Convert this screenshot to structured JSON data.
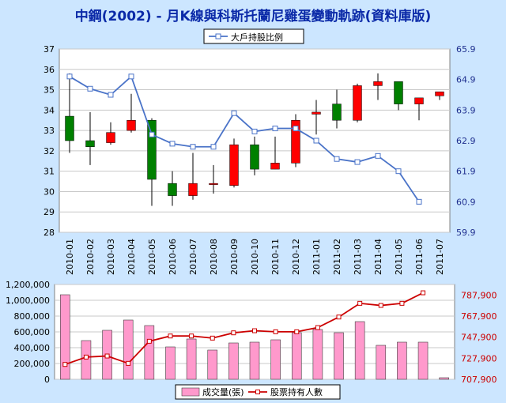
{
  "title": "中鋼(2002) - 月K線與科斯托蘭尼雞蛋變動軌跡(資料庫版)",
  "colors": {
    "background": "#cce6ff",
    "title": "#0b2aa8",
    "up_candle": "#ff0000",
    "down_candle": "#008000",
    "holder_ratio_line": "#4a73c8",
    "right_axis_top": "#1f2f8f",
    "volume_bar": "#ff99cc",
    "shareholder_line": "#cc0000",
    "right_axis_bottom": "#cc0000"
  },
  "chart_data": [
    {
      "type": "candlestick",
      "legend": [
        "大戶持股比例"
      ],
      "legend_position": "top",
      "categories": [
        "2010-01",
        "2010-02",
        "2010-03",
        "2010-04",
        "2010-05",
        "2010-06",
        "2010-07",
        "2010-08",
        "2010-09",
        "2010-10",
        "2010-11",
        "2010-12",
        "2011-01",
        "2011-02",
        "2011-03",
        "2011-04",
        "2011-05",
        "2011-06",
        "2011-07"
      ],
      "ohlc": [
        {
          "open": 33.7,
          "high": 35.8,
          "low": 31.9,
          "close": 32.5
        },
        {
          "open": 32.5,
          "high": 33.9,
          "low": 31.3,
          "close": 32.2
        },
        {
          "open": 32.4,
          "high": 33.4,
          "low": 32.3,
          "close": 32.9
        },
        {
          "open": 33.0,
          "high": 34.8,
          "low": 32.9,
          "close": 33.5
        },
        {
          "open": 33.5,
          "high": 33.6,
          "low": 29.3,
          "close": 30.6
        },
        {
          "open": 30.4,
          "high": 31.0,
          "low": 29.3,
          "close": 29.8
        },
        {
          "open": 29.8,
          "high": 31.9,
          "low": 29.6,
          "close": 30.4
        },
        {
          "open": 30.35,
          "high": 31.3,
          "low": 29.9,
          "close": 30.4
        },
        {
          "open": 30.3,
          "high": 32.6,
          "low": 30.2,
          "close": 32.3
        },
        {
          "open": 32.3,
          "high": 32.7,
          "low": 30.8,
          "close": 31.1
        },
        {
          "open": 31.1,
          "high": 32.7,
          "low": 31.1,
          "close": 31.4
        },
        {
          "open": 31.4,
          "high": 33.8,
          "low": 31.2,
          "close": 33.5
        },
        {
          "open": 33.8,
          "high": 34.5,
          "low": 32.8,
          "close": 33.9
        },
        {
          "open": 34.3,
          "high": 35.0,
          "low": 33.1,
          "close": 33.5
        },
        {
          "open": 33.5,
          "high": 35.3,
          "low": 33.4,
          "close": 35.2
        },
        {
          "open": 35.2,
          "high": 35.8,
          "low": 34.5,
          "close": 35.4
        },
        {
          "open": 35.4,
          "high": 35.4,
          "low": 34.0,
          "close": 34.3
        },
        {
          "open": 34.3,
          "high": 34.6,
          "low": 33.5,
          "close": 34.6
        },
        {
          "open": 34.7,
          "high": 34.9,
          "low": 34.5,
          "close": 34.9
        }
      ],
      "series": [
        {
          "name": "大戶持股比例",
          "axis": "right",
          "values": [
            65.0,
            64.6,
            64.4,
            65.0,
            63.1,
            62.8,
            62.7,
            62.7,
            63.8,
            63.2,
            63.3,
            63.3,
            62.9,
            62.3,
            62.2,
            62.4,
            61.9,
            60.9,
            null
          ]
        }
      ],
      "y_left": {
        "min": 28,
        "max": 37,
        "ticks": [
          28,
          29,
          30,
          31,
          32,
          33,
          34,
          35,
          36,
          37
        ]
      },
      "y_right": {
        "min": 59.9,
        "max": 65.9,
        "ticks": [
          "59.9",
          "60.9",
          "61.9",
          "62.9",
          "63.9",
          "64.9",
          "65.9"
        ]
      },
      "grid": true
    },
    {
      "type": "bar",
      "legend_position": "bottom",
      "categories": [
        "2010-01",
        "2010-02",
        "2010-03",
        "2010-04",
        "2010-05",
        "2010-06",
        "2010-07",
        "2010-08",
        "2010-09",
        "2010-10",
        "2010-11",
        "2010-12",
        "2011-01",
        "2011-02",
        "2011-03",
        "2011-04",
        "2011-05",
        "2011-06",
        "2011-07"
      ],
      "series": [
        {
          "name": "成交量(張)",
          "axis": "left",
          "values": [
            1070000,
            490000,
            620000,
            750000,
            680000,
            410000,
            510000,
            370000,
            460000,
            470000,
            500000,
            590000,
            630000,
            590000,
            730000,
            430000,
            470000,
            470000,
            20000
          ]
        },
        {
          "name": "股票持有人數",
          "axis": "right",
          "type": "line",
          "values": [
            722000,
            729000,
            730000,
            723000,
            744000,
            749000,
            749000,
            747000,
            752000,
            754000,
            753000,
            753000,
            757000,
            767000,
            780000,
            778000,
            780000,
            790000,
            null
          ]
        }
      ],
      "y_left": {
        "min": 0,
        "max": 1200000,
        "ticks": [
          "0",
          "200,000",
          "400,000",
          "600,000",
          "800,000",
          "1,000,000",
          "1,200,000"
        ]
      },
      "y_right": {
        "min": 707900,
        "max": 797900,
        "ticks": [
          "707,900",
          "727,900",
          "747,900",
          "767,900",
          "787,900"
        ]
      },
      "grid": true
    }
  ]
}
